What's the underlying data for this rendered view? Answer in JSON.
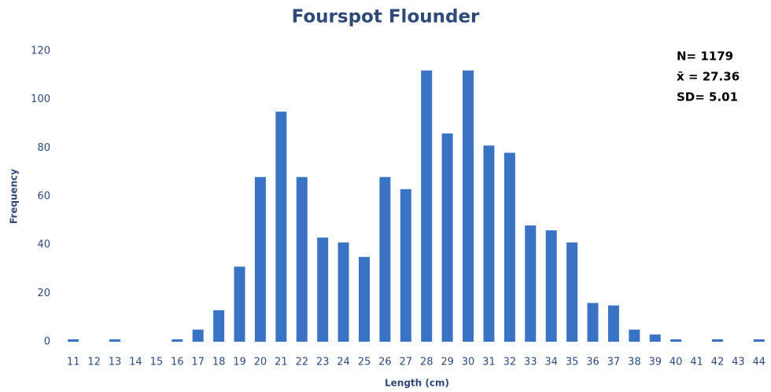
{
  "chart_data": {
    "type": "bar",
    "title": "Fourspot Flounder",
    "x_label": "Length (cm)",
    "y_label": "Frequency",
    "categories": [
      "11",
      "12",
      "13",
      "14",
      "15",
      "16",
      "17",
      "18",
      "19",
      "20",
      "21",
      "22",
      "23",
      "24",
      "25",
      "26",
      "27",
      "28",
      "29",
      "30",
      "31",
      "32",
      "33",
      "34",
      "35",
      "36",
      "37",
      "38",
      "39",
      "40",
      "41",
      "42",
      "43",
      "44"
    ],
    "values": [
      1,
      0,
      1,
      0,
      0,
      1,
      5,
      13,
      31,
      68,
      95,
      68,
      43,
      41,
      35,
      68,
      63,
      112,
      86,
      112,
      81,
      78,
      48,
      46,
      41,
      16,
      15,
      5,
      3,
      1,
      0,
      1,
      0,
      1
    ],
    "color": "#3b73c4",
    "ylim": [
      0,
      120
    ],
    "yticks": [
      0,
      20,
      40,
      60,
      80,
      100,
      120
    ],
    "grid": false,
    "annotations": [
      "N= 1179",
      "x̄ = 27.36",
      "SD= 5.01"
    ]
  }
}
